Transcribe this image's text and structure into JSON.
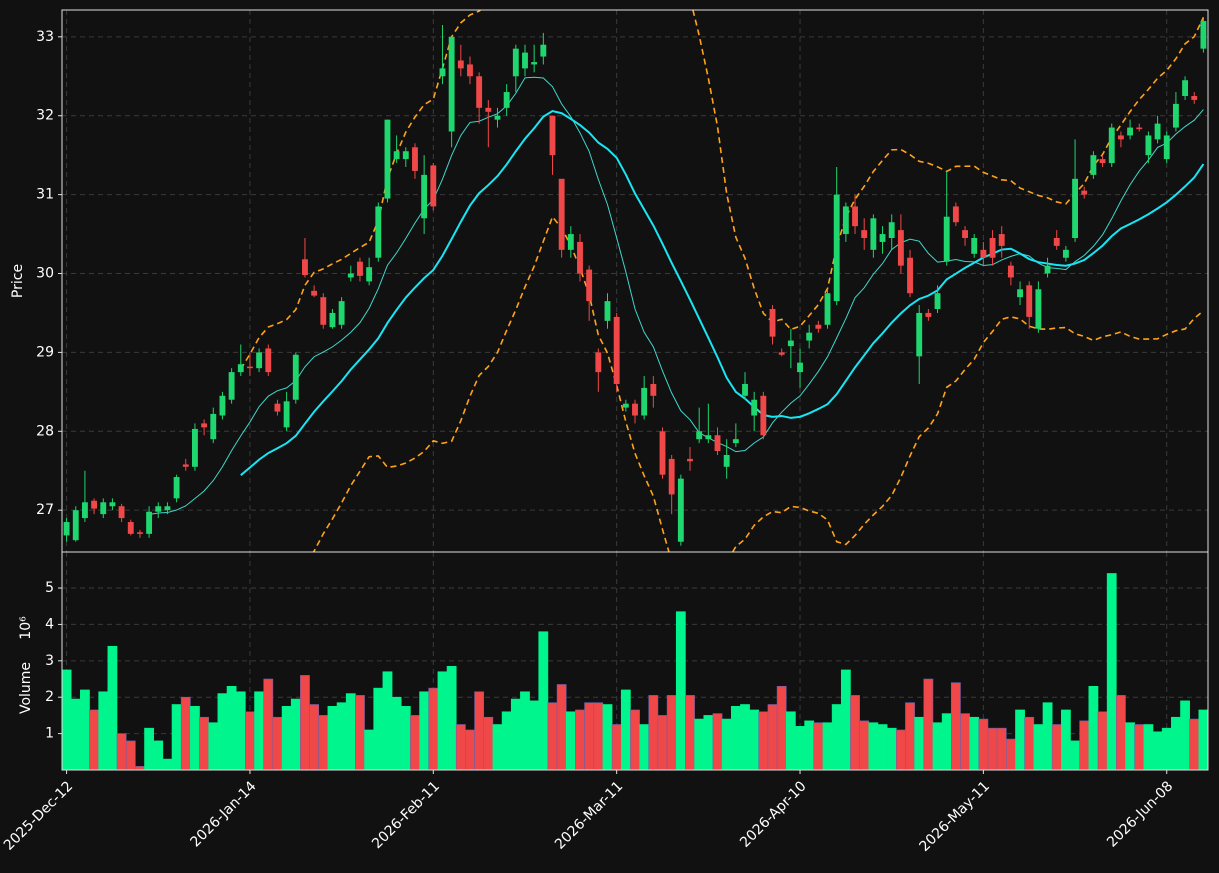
{
  "chart_data": {
    "type": "candlestick",
    "ylabel": "Price",
    "volume_ylabel": "Volume",
    "volume_offset_label": "10⁶",
    "categories": [
      "2025-Dec-12",
      null,
      null,
      null,
      null,
      null,
      null,
      null,
      null,
      null,
      null,
      null,
      null,
      null,
      null,
      null,
      null,
      null,
      null,
      null,
      "2026-Jan-14",
      null,
      null,
      null,
      null,
      null,
      null,
      null,
      null,
      null,
      null,
      null,
      null,
      null,
      null,
      null,
      null,
      null,
      null,
      null,
      "2026-Feb-11",
      null,
      null,
      null,
      null,
      null,
      null,
      null,
      null,
      null,
      null,
      null,
      null,
      null,
      null,
      null,
      null,
      null,
      null,
      null,
      "2026-Mar-11",
      null,
      null,
      null,
      null,
      null,
      null,
      null,
      null,
      null,
      null,
      null,
      null,
      null,
      null,
      null,
      null,
      null,
      null,
      null,
      "2026-Apr-10",
      null,
      null,
      null,
      null,
      null,
      null,
      null,
      null,
      null,
      null,
      null,
      null,
      null,
      null,
      null,
      null,
      null,
      null,
      null,
      "2026-May-11",
      null,
      null,
      null,
      null,
      null,
      null,
      null,
      null,
      null,
      null,
      null,
      null,
      null,
      null,
      null,
      null,
      null,
      null,
      null,
      "2026-Jun-08",
      null,
      null,
      null,
      null
    ],
    "open": [
      26.68,
      26.62,
      26.9,
      27.12,
      26.95,
      27.05,
      27.05,
      26.85,
      26.72,
      26.7,
      26.98,
      27.0,
      27.15,
      27.58,
      27.55,
      28.1,
      27.9,
      28.2,
      28.4,
      28.75,
      28.82,
      28.8,
      29.05,
      28.35,
      28.05,
      28.4,
      30.18,
      29.78,
      29.7,
      29.32,
      29.35,
      29.95,
      30.15,
      29.9,
      30.2,
      30.95,
      31.45,
      31.45,
      31.6,
      30.7,
      31.37,
      32.5,
      31.8,
      32.7,
      32.65,
      32.5,
      32.1,
      31.95,
      32.1,
      32.5,
      32.6,
      32.65,
      32.75,
      32.0,
      31.2,
      30.3,
      30.4,
      30.05,
      29.0,
      29.4,
      29.45,
      28.3,
      28.35,
      28.2,
      28.6,
      28.0,
      27.65,
      26.6,
      27.65,
      27.9,
      27.9,
      27.95,
      27.55,
      27.85,
      28.45,
      28.2,
      28.45,
      29.55,
      29.0,
      29.08,
      28.75,
      29.15,
      29.35,
      29.35,
      29.65,
      30.5,
      30.85,
      30.55,
      30.3,
      30.4,
      30.45,
      30.55,
      30.2,
      28.95,
      29.5,
      29.55,
      30.15,
      30.85,
      30.55,
      30.25,
      30.3,
      30.45,
      30.5,
      30.1,
      29.7,
      29.85,
      29.3,
      30.0,
      30.45,
      30.2,
      30.45,
      31.05,
      31.25,
      31.45,
      31.4,
      31.75,
      31.75,
      31.85,
      31.5,
      31.7,
      31.45,
      31.85,
      32.25,
      32.25,
      32.85
    ],
    "high": [
      26.9,
      27.05,
      27.5,
      27.15,
      27.15,
      27.15,
      27.08,
      26.88,
      26.75,
      27.05,
      27.1,
      27.1,
      27.45,
      27.65,
      28.1,
      28.15,
      28.3,
      28.5,
      28.8,
      29.1,
      29.0,
      29.05,
      29.1,
      28.4,
      28.5,
      29.0,
      30.45,
      29.85,
      29.75,
      29.55,
      29.7,
      30.1,
      30.2,
      30.2,
      30.9,
      31.95,
      31.75,
      31.6,
      31.65,
      31.5,
      31.4,
      33.15,
      33.0,
      32.9,
      32.75,
      32.55,
      32.2,
      32.1,
      32.4,
      32.9,
      32.9,
      32.9,
      33.05,
      32.0,
      31.2,
      30.6,
      30.5,
      30.1,
      29.05,
      29.75,
      29.5,
      28.4,
      28.4,
      28.7,
      28.7,
      28.05,
      27.7,
      27.45,
      27.8,
      28.3,
      28.35,
      28.05,
      27.9,
      28.1,
      28.75,
      28.5,
      28.5,
      29.6,
      29.05,
      29.3,
      29.05,
      29.35,
      29.4,
      29.8,
      31.35,
      30.9,
      31.0,
      30.7,
      30.75,
      30.6,
      30.75,
      30.75,
      30.3,
      29.6,
      29.55,
      29.85,
      31.3,
      30.9,
      30.6,
      30.5,
      30.4,
      30.55,
      30.6,
      30.15,
      29.9,
      29.9,
      29.9,
      30.2,
      30.55,
      30.35,
      31.7,
      31.1,
      31.55,
      31.5,
      31.9,
      31.8,
      31.95,
      31.9,
      31.8,
      32.0,
      31.8,
      32.3,
      32.5,
      32.3,
      33.25
    ],
    "low": [
      26.6,
      26.6,
      26.85,
      26.95,
      26.9,
      27.0,
      26.85,
      26.68,
      26.65,
      26.65,
      26.9,
      26.95,
      27.1,
      27.5,
      27.5,
      27.95,
      27.85,
      28.15,
      28.35,
      28.7,
      28.7,
      28.75,
      28.7,
      28.2,
      28.0,
      28.35,
      29.95,
      29.7,
      29.3,
      29.3,
      29.3,
      29.9,
      29.9,
      29.85,
      30.15,
      30.9,
      31.4,
      31.35,
      31.2,
      30.5,
      30.8,
      32.4,
      31.6,
      32.5,
      32.4,
      31.9,
      31.6,
      31.85,
      32.0,
      32.3,
      32.5,
      32.55,
      32.65,
      31.25,
      30.2,
      30.2,
      29.9,
      29.4,
      28.5,
      29.3,
      28.5,
      28.25,
      28.1,
      28.15,
      28.3,
      27.4,
      26.95,
      26.55,
      27.5,
      27.85,
      27.85,
      27.7,
      27.4,
      27.8,
      28.4,
      28.0,
      27.9,
      29.1,
      28.95,
      28.8,
      28.55,
      29.05,
      29.25,
      29.3,
      29.6,
      30.4,
      30.5,
      30.3,
      30.2,
      30.25,
      30.3,
      30.0,
      29.7,
      28.6,
      29.4,
      29.5,
      30.1,
      30.6,
      30.35,
      30.2,
      30.1,
      30.1,
      30.2,
      29.85,
      29.6,
      29.3,
      29.25,
      29.95,
      30.3,
      30.15,
      30.4,
      30.95,
      31.2,
      31.35,
      31.35,
      31.6,
      31.7,
      31.8,
      31.4,
      31.65,
      31.4,
      31.8,
      32.2,
      32.15,
      32.8
    ],
    "close": [
      26.85,
      27.0,
      27.1,
      27.02,
      27.1,
      27.1,
      26.9,
      26.7,
      26.7,
      26.98,
      27.05,
      27.05,
      27.42,
      27.55,
      28.03,
      28.05,
      28.22,
      28.45,
      28.75,
      28.85,
      28.8,
      29.0,
      28.75,
      28.25,
      28.38,
      28.97,
      29.98,
      29.72,
      29.35,
      29.5,
      29.65,
      30.0,
      29.97,
      30.08,
      30.85,
      31.95,
      31.55,
      31.55,
      31.3,
      31.25,
      30.85,
      32.6,
      33.0,
      32.6,
      32.5,
      32.1,
      32.05,
      32.0,
      32.3,
      32.85,
      32.8,
      32.68,
      32.9,
      31.5,
      30.3,
      30.5,
      30.0,
      29.65,
      28.75,
      29.65,
      28.6,
      28.35,
      28.2,
      28.55,
      28.45,
      27.45,
      27.2,
      27.4,
      27.62,
      28.0,
      27.95,
      27.75,
      27.7,
      27.9,
      28.6,
      28.4,
      27.95,
      29.2,
      28.97,
      29.15,
      28.87,
      29.25,
      29.3,
      29.75,
      31.0,
      30.85,
      30.6,
      30.45,
      30.7,
      30.5,
      30.65,
      30.1,
      29.75,
      29.5,
      29.45,
      29.75,
      30.72,
      30.65,
      30.45,
      30.45,
      30.2,
      30.2,
      30.35,
      29.95,
      29.8,
      29.45,
      29.8,
      30.1,
      30.35,
      30.3,
      31.2,
      31.0,
      31.5,
      31.4,
      31.85,
      31.7,
      31.85,
      31.83,
      31.75,
      31.9,
      31.75,
      32.15,
      32.45,
      32.2,
      33.2
    ],
    "volume": [
      2.75,
      1.95,
      2.2,
      1.65,
      2.15,
      3.4,
      1.0,
      0.8,
      0.1,
      1.15,
      0.8,
      0.3,
      1.8,
      2.0,
      1.75,
      1.45,
      1.3,
      2.1,
      2.3,
      2.15,
      1.6,
      2.15,
      2.5,
      1.45,
      1.75,
      1.95,
      2.6,
      1.8,
      1.5,
      1.75,
      1.85,
      2.1,
      2.05,
      1.1,
      2.25,
      2.7,
      2.0,
      1.75,
      1.5,
      2.15,
      2.25,
      2.7,
      2.85,
      1.25,
      1.1,
      2.15,
      1.45,
      1.25,
      1.6,
      1.95,
      2.15,
      1.9,
      3.8,
      1.85,
      2.35,
      1.6,
      1.65,
      1.85,
      1.85,
      1.8,
      1.25,
      2.2,
      1.65,
      1.25,
      2.05,
      1.5,
      2.05,
      4.35,
      2.05,
      1.4,
      1.5,
      1.55,
      1.4,
      1.75,
      1.8,
      1.65,
      1.6,
      1.8,
      2.3,
      1.6,
      1.2,
      1.35,
      1.3,
      1.3,
      1.8,
      2.75,
      2.05,
      1.35,
      1.3,
      1.25,
      1.15,
      1.1,
      1.85,
      1.45,
      2.5,
      1.3,
      1.55,
      2.4,
      1.55,
      1.45,
      1.4,
      1.15,
      1.15,
      0.85,
      1.65,
      1.45,
      1.25,
      1.85,
      1.25,
      1.65,
      0.8,
      1.35,
      2.3,
      1.6,
      5.4,
      2.05,
      1.3,
      1.25,
      1.25,
      1.05,
      1.15,
      1.45,
      1.9,
      1.4,
      1.65
    ],
    "ylim": [
      26.47,
      33.34
    ],
    "yticks": [
      27,
      28,
      29,
      30,
      31,
      32,
      33
    ],
    "volume_ylim": [
      0,
      5.99
    ],
    "volume_yticks": [
      1,
      2,
      3,
      4,
      5
    ],
    "up_color": "#1fd66f",
    "down_color": "#f04848",
    "volume_up_color": "#00f58c",
    "ma_colors": [
      "#3fd8cc",
      "#19e6f5"
    ],
    "band_color": "#ffa31a",
    "grid": true
  }
}
